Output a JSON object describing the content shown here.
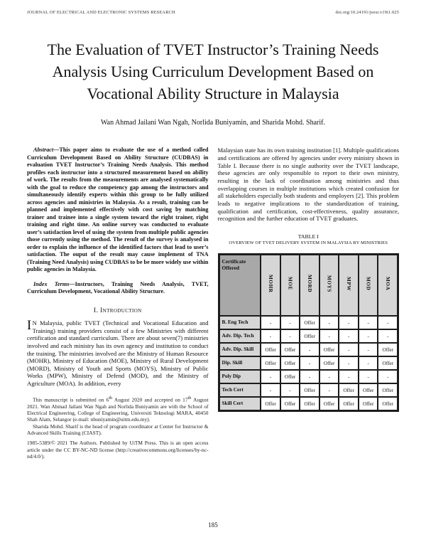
{
  "page_header": {
    "journal": "JOURNAL OF ELECTRICAL AND ELECTRONIC SYSTEMS RESEARCH",
    "doi": "doi.org/10.24191/jeesr.v19i1.025"
  },
  "title": "The Evaluation of TVET Instructor’s Training Needs Analysis Using Curriculum Development Based on Vocational Ability Structure in Malaysia",
  "authors": "Wan Ahmad Jailani Wan Ngah, Norlida Buniyamin, and Sharida Mohd. Sharif.",
  "abstract": {
    "label": "Abstract—",
    "text": "This paper aims to evaluate the use of a method called Curriculum Development Based on Ability Structure (CUDBAS) in evaluation TVET Instructor’s Training Needs Analysis. This method profiles each instructor into a structured measurement based on ability of work. The results from the measurements are analysed systematically with the goal to reduce the competency gap among the instructors and simultaneously identify experts within this group to be fully utilized across agencies and ministries in Malaysia. As a result, training can be planned and implemented effectively with cost saving by matching trainer and trainee into a single system toward the right trainer, right training and right time. An online survey was conducted to evaluate user’s satisfaction level of using the system from multiple public agencies those currently using the method. The result of the survey is analysed in order to explain the influence of the identified factors that lead to user’s satisfaction. The ouput of the result may cause implement of TNA (Training Need Analysis) using CUDBAS to be be more widely use within public agencies in Malaysia."
  },
  "index_terms": {
    "label": "Index Terms—",
    "text": "Instructors, Training Needs Analysis, TVET, Curriculum Development, Vocational Ability Structure."
  },
  "introduction": {
    "heading": "I. Introduction",
    "drop_cap": "I",
    "paragraph_rest": "N Malaysia, public TVET (Technical and Vocational Education and Training) training providers consist of a few Ministries with different certification and standard curriculum. There are about seven(7) ministries involved and each ministry has its own agency and institution to conduct the training. The ministries involved are the Ministry of Human Resource (MOHR), Ministry of Education (MOE), Ministry of Rural Development (MORD), Ministry of Youth and Sports (MOYS), Ministry of Public Works (MPW), Ministry of Defend (MOD), and the Ministry of Agriculture (MOA). In addition, every"
  },
  "footnotes": {
    "note1_part1": "This manuscript is submitted on 6",
    "note1_sup1": "th",
    "note1_part2": " August 2020 and accepted on 17",
    "note1_sup2": "th",
    "note1_part3": " August 2021. Wan Ahmad Jailani Wan Ngah and Norlida Buniyamin are with the School of Electrical Engineering, College of Engineering, Universiti Teknologi MARA, 40450 Shah Alam, Selangor (e-mail: nbuniyamin@uitm.edu.my).",
    "note2": "Sharida Mohd. Sharif is the head of program coordinator at Center for Instructor & Advanced Skills Training (CIAST).",
    "note3": "1985-5389/© 2021 The Authors. Published by UiTM Press. This is an open access article under the CC BY-NC-ND license (http://creativecommons.org/licenses/by-nc-nd/4.0/)."
  },
  "right_column": {
    "paragraph": "Malaysian state has its own training institution [1]. Multiple qualifications and certifications are offered by agencies under every ministry shown in Table I. Because there is no single authority over the TVET landscape, these agencies are only responsible to report to their own ministry, resulting in the lack of coordination among ministries and thus overlapping courses in multiple institutions which created confusion for all stakeholders especially both students and employers [2]. This problem leads to negative implications to the standardization of training, qualification and certification, cost-effectiveness, quality assurance, recognition and the further education of TVET graduates."
  },
  "table": {
    "caption_line1": "TABLE I",
    "caption_line2": "OVERVIEW OF TVET DELIVERY SYSTEM IN MALAYSIA BY MINISTRIES",
    "corner_header": "Certificate Offered",
    "columns": [
      "MOHR",
      "MOE",
      "MORD",
      "MOYS",
      "MPW",
      "MOD",
      "MOA"
    ],
    "rows": [
      {
        "label": "B. Eng Tech",
        "cells": [
          "-",
          "-",
          "Offer",
          "-",
          "-",
          "-",
          "-"
        ]
      },
      {
        "label": "Adv. Dip. Tech",
        "cells": [
          "-",
          "-",
          "Offer",
          "-",
          "-",
          "-",
          "-"
        ]
      },
      {
        "label": "Adv. Dip. Skill",
        "cells": [
          "Offer",
          "Offer",
          "-",
          "Offer",
          "-",
          "-",
          "Offer"
        ]
      },
      {
        "label": "Dip. Skill",
        "cells": [
          "Offer",
          "Offer",
          "-",
          "Offer",
          "-",
          "-",
          "Offer"
        ]
      },
      {
        "label": "Poly Dip",
        "cells": [
          "-",
          "Offer",
          "-",
          "-",
          "-",
          "-",
          "-"
        ]
      },
      {
        "label": "Tech Cert",
        "cells": [
          "-",
          "-",
          "Offer",
          "-",
          "Offer",
          "Offer",
          "Offer"
        ]
      },
      {
        "label": "Skill Cert",
        "cells": [
          "Offer",
          "Offer",
          "Offer",
          "Offer",
          "Offer",
          "Offer",
          "Offer"
        ]
      }
    ],
    "colors": {
      "corner_bg": "#a8a8a8",
      "header_bg": "#d6d6d6",
      "label_bg": "#d6d6d6",
      "border": "#1c1c1c"
    }
  },
  "page_number": "185"
}
